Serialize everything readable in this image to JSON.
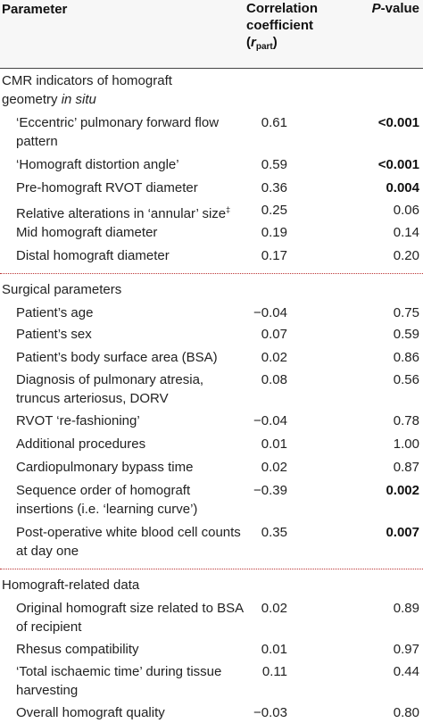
{
  "header": {
    "parameter": "Parameter",
    "corr_line1": "Correlation",
    "corr_line2": "coefficient",
    "corr_r": "r",
    "corr_sub": "part",
    "pvalue_p": "P",
    "pvalue_rest": "-value"
  },
  "sections": [
    {
      "title_line1": "CMR indicators of homograft",
      "title_line2a": "geometry ",
      "title_line2b": "in situ",
      "rows": [
        {
          "label": "‘Eccentric’ pulmonary forward flow pattern",
          "r": "0.61",
          "p": "<0.001",
          "bold": true
        },
        {
          "label": "‘Homograft distortion angle’",
          "r": "0.59",
          "p": "<0.001",
          "bold": true
        },
        {
          "label": "Pre-homograft RVOT diameter",
          "r": "0.36",
          "p": "0.004",
          "bold": true
        },
        {
          "label": "Relative alterations in ‘annular’ size",
          "sup": "‡",
          "r": "0.25",
          "p": "0.06",
          "bold": false
        },
        {
          "label": "Mid homograft diameter",
          "r": "0.19",
          "p": "0.14",
          "bold": false
        },
        {
          "label": "Distal homograft diameter",
          "r": "0.17",
          "p": "0.20",
          "bold": false
        }
      ]
    },
    {
      "title_line1": "Surgical parameters",
      "rows": [
        {
          "label": "Patient’s age",
          "r": "−0.04",
          "p": "0.75",
          "bold": false
        },
        {
          "label": "Patient’s sex",
          "r": "0.07",
          "p": "0.59",
          "bold": false
        },
        {
          "label": "Patient’s body surface area (BSA)",
          "r": "0.02",
          "p": "0.86",
          "bold": false
        },
        {
          "label": "Diagnosis of pulmonary atresia, truncus arteriosus, DORV",
          "r": "0.08",
          "p": "0.56",
          "bold": false
        },
        {
          "label": "RVOT ‘re-fashioning’",
          "r": "−0.04",
          "p": "0.78",
          "bold": false
        },
        {
          "label": "Additional procedures",
          "r": "0.01",
          "p": "1.00",
          "bold": false
        },
        {
          "label": "Cardiopulmonary bypass time",
          "r": "0.02",
          "p": "0.87",
          "bold": false
        },
        {
          "label": "Sequence order of homograft insertions (i.e. ‘learning curve’)",
          "r": "−0.39",
          "p": "0.002",
          "bold": true
        },
        {
          "label": "Post-operative white blood cell counts at day one",
          "r": "0.35",
          "p": "0.007",
          "bold": true
        }
      ]
    },
    {
      "title_line1": "Homograft-related data",
      "rows": [
        {
          "label": "Original homograft size related to BSA of recipient",
          "r": "0.02",
          "p": "0.89",
          "bold": false
        },
        {
          "label": "Rhesus compatibility",
          "r": "0.01",
          "p": "0.97",
          "bold": false
        },
        {
          "label": "‘Total ischaemic time’ during tissue harvesting",
          "r": "0.11",
          "p": "0.44",
          "bold": false
        },
        {
          "label": "Overall homograft quality",
          "r": "−0.03",
          "p": "0.80",
          "bold": false
        }
      ]
    }
  ]
}
